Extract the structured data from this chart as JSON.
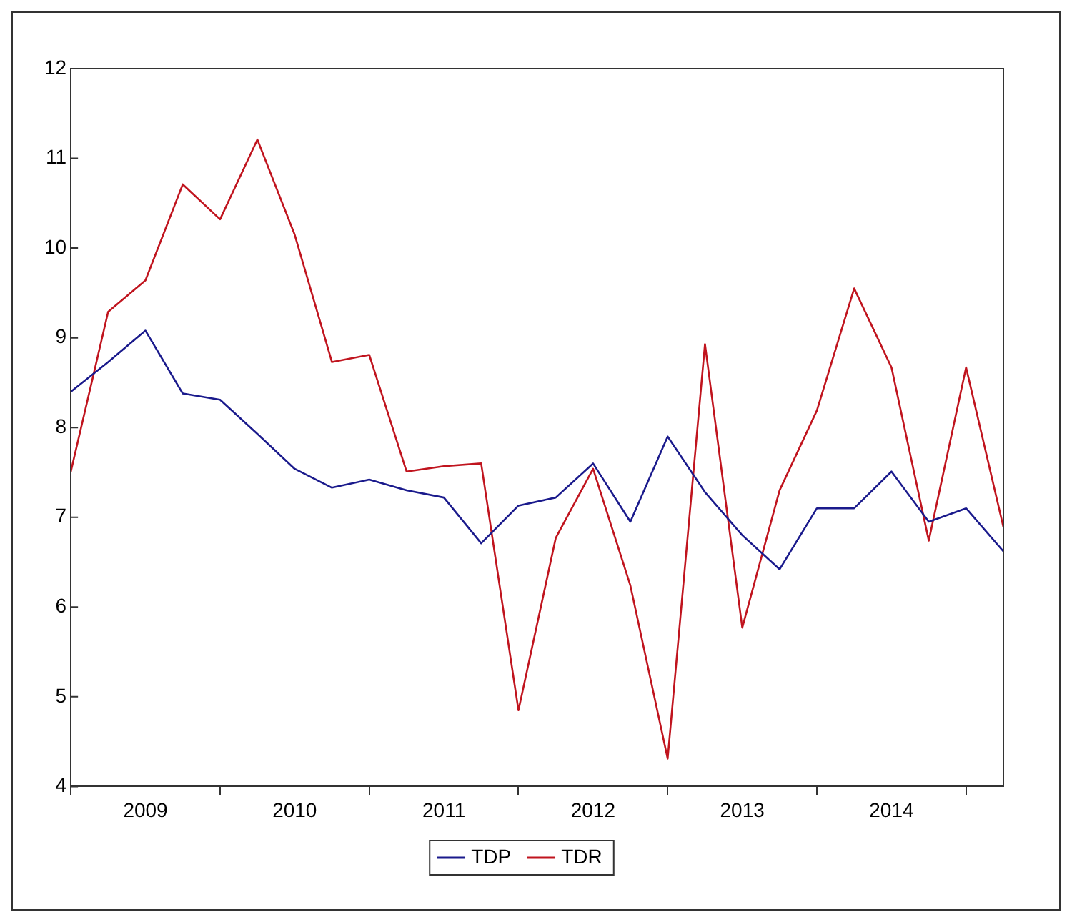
{
  "chart_data": {
    "type": "line",
    "x": [
      2009,
      2009.25,
      2009.5,
      2009.75,
      2010,
      2010.25,
      2010.5,
      2010.75,
      2011,
      2011.25,
      2011.5,
      2011.75,
      2012,
      2012.25,
      2012.5,
      2012.75,
      2013,
      2013.25,
      2013.5,
      2013.75,
      2014,
      2014.25,
      2014.5,
      2014.75,
      2015,
      2015.25
    ],
    "series": [
      {
        "name": "TDP",
        "color": "#1a1a8c",
        "values": [
          8.4,
          8.73,
          9.08,
          8.38,
          8.31,
          7.93,
          7.54,
          7.33,
          7.42,
          7.3,
          7.22,
          6.71,
          7.13,
          7.22,
          7.6,
          6.95,
          7.9,
          7.28,
          6.8,
          6.42,
          7.1,
          7.1,
          7.51,
          6.95,
          7.1,
          6.62
        ]
      },
      {
        "name": "TDR",
        "color": "#c0141e",
        "values": [
          7.51,
          9.29,
          9.64,
          10.71,
          10.32,
          11.21,
          10.15,
          8.73,
          8.81,
          7.51,
          7.57,
          7.6,
          4.85,
          6.77,
          7.54,
          6.24,
          4.31,
          8.93,
          5.77,
          7.3,
          8.19,
          9.55,
          8.67,
          6.74,
          8.67,
          6.89
        ]
      }
    ],
    "xlim": [
      2009,
      2015.25
    ],
    "xticks": [
      {
        "value": 2009,
        "label": null
      },
      {
        "value": 2009.5,
        "label": "2009"
      },
      {
        "value": 2010,
        "label": null
      },
      {
        "value": 2010.5,
        "label": "2010"
      },
      {
        "value": 2011,
        "label": null
      },
      {
        "value": 2011.5,
        "label": "2011"
      },
      {
        "value": 2012,
        "label": null
      },
      {
        "value": 2012.5,
        "label": "2012"
      },
      {
        "value": 2013,
        "label": null
      },
      {
        "value": 2013.5,
        "label": "2013"
      },
      {
        "value": 2014,
        "label": null
      },
      {
        "value": 2014.5,
        "label": "2014"
      },
      {
        "value": 2015,
        "label": null
      }
    ],
    "ylim": [
      4,
      12
    ],
    "yticks": [
      4,
      5,
      6,
      7,
      8,
      9,
      10,
      11,
      12
    ],
    "grid": false,
    "legend": "bottom",
    "marker": "none",
    "line_style": "solid"
  }
}
